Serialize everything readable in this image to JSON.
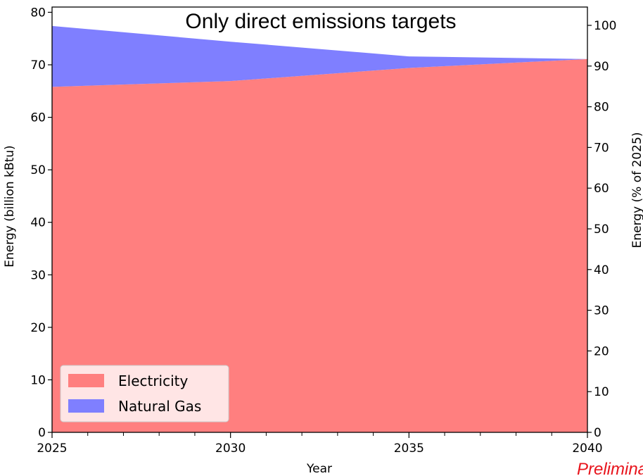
{
  "chart_data": {
    "type": "area",
    "title": "Only direct emissions targets",
    "xlabel": "Year",
    "ylabel": "Energy (billion kBtu)",
    "ylabel_right": "Energy (% of 2025)",
    "xlim": [
      2025,
      2040
    ],
    "ylim": [
      0,
      81
    ],
    "ylim_right": [
      0,
      104.5
    ],
    "x_major_ticks": [
      2025,
      2030,
      2035,
      2040
    ],
    "x_minor_ticks": [
      2026,
      2027,
      2028,
      2029,
      2031,
      2032,
      2033,
      2034,
      2036,
      2037,
      2038,
      2039
    ],
    "y_ticks": [
      0,
      10,
      20,
      30,
      40,
      50,
      60,
      70,
      80
    ],
    "y_ticks_right": [
      0,
      10,
      20,
      30,
      40,
      50,
      60,
      70,
      80,
      90,
      100
    ],
    "stacked": true,
    "grid": false,
    "legend_position": "lower-left",
    "x": [
      2025,
      2030,
      2035,
      2040
    ],
    "series": [
      {
        "name": "Electricity",
        "values": [
          65.8,
          66.9,
          69.4,
          71.1
        ],
        "color": "#ff7f7f"
      },
      {
        "name": "Natural Gas",
        "values": [
          11.6,
          7.5,
          2.2,
          0.0
        ],
        "color": "#7f7fff"
      }
    ]
  },
  "watermark": "Preliminary"
}
